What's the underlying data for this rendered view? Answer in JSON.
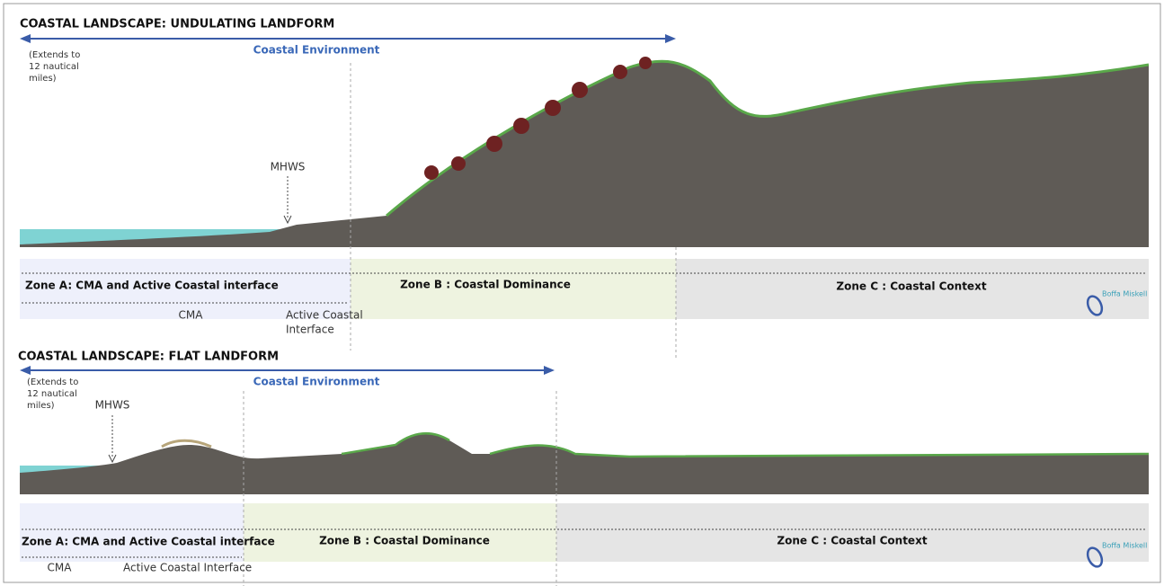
{
  "panels": [
    {
      "title": "COASTAL LANDSCAPE: UNDULATING LANDFORM",
      "environment": "Coastal Environment",
      "extent": [
        "(Extends to",
        "12 nautical",
        "miles)"
      ],
      "mhws": "MHWS",
      "zones": [
        "Zone A: CMA and Active Coastal  interface",
        "Zone B : Coastal Dominance",
        "Zone C : Coastal Context"
      ],
      "sub_zones": {
        "cma": "CMA",
        "active": [
          "Active Coastal",
          "Interface"
        ]
      },
      "logo": "Boffa Miskell"
    },
    {
      "title": "COASTAL LANDSCAPE: FLAT LANDFORM",
      "environment": "Coastal Environment",
      "extent": [
        "(Extends to",
        "12 nautical",
        "miles)"
      ],
      "mhws": "MHWS",
      "zones": [
        "Zone A: CMA and Active Coastal  interface",
        "Zone B : Coastal Dominance",
        "Zone C : Coastal Context"
      ],
      "sub_zones": {
        "cma": "CMA",
        "active": [
          "Active Coastal Interface"
        ]
      },
      "logo": "Boffa Miskell"
    }
  ]
}
